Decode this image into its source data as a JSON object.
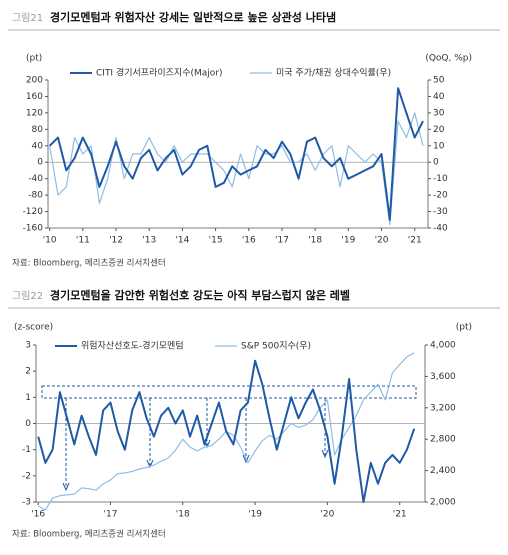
{
  "chart_data": [
    {
      "type": "line",
      "figure_label": "그림21",
      "title": "경기모멘텀과 위험자산 강세는 일반적으로 높은 상관성 나타냄",
      "y_label": "(pt)",
      "y2_label": "(QoQ, %p)",
      "x": [
        2010,
        2010.25,
        2010.5,
        2010.75,
        2011,
        2011.25,
        2011.5,
        2011.75,
        2012,
        2012.25,
        2012.5,
        2012.75,
        2013,
        2013.25,
        2013.5,
        2013.75,
        2014,
        2014.25,
        2014.5,
        2014.75,
        2015,
        2015.25,
        2015.5,
        2015.75,
        2016,
        2016.25,
        2016.5,
        2016.75,
        2017,
        2017.25,
        2017.5,
        2017.75,
        2018,
        2018.25,
        2018.5,
        2018.75,
        2019,
        2019.25,
        2019.5,
        2019.75,
        2020,
        2020.25,
        2020.5,
        2020.75,
        2021,
        2021.25
      ],
      "xlim": [
        2009.95,
        2021.4
      ],
      "xticks": [
        {
          "value": 2010,
          "label": "'10"
        },
        {
          "value": 2011,
          "label": "'11"
        },
        {
          "value": 2012,
          "label": "'12"
        },
        {
          "value": 2013,
          "label": "'13"
        },
        {
          "value": 2014,
          "label": "'14"
        },
        {
          "value": 2015,
          "label": "'15"
        },
        {
          "value": 2016,
          "label": "'16"
        },
        {
          "value": 2017,
          "label": "'17"
        },
        {
          "value": 2018,
          "label": "'18"
        },
        {
          "value": 2019,
          "label": "'19"
        },
        {
          "value": 2020,
          "label": "'20"
        },
        {
          "value": 2021,
          "label": "'21"
        }
      ],
      "ylim": [
        -160,
        200
      ],
      "yticks": [
        -160,
        -120,
        -80,
        -40,
        0,
        40,
        80,
        120,
        160,
        200
      ],
      "y2lim": [
        -40,
        50
      ],
      "y2ticks": [
        -40,
        -30,
        -20,
        -10,
        0,
        10,
        20,
        30,
        40,
        50
      ],
      "series": [
        {
          "name": "CITI 경기서프라이즈지수(Major)",
          "color": "#1f5aa6",
          "width": 2,
          "values": [
            40,
            60,
            -20,
            10,
            60,
            20,
            -60,
            -10,
            50,
            -10,
            -40,
            10,
            30,
            -20,
            10,
            30,
            -30,
            -10,
            30,
            40,
            -60,
            -50,
            -10,
            -30,
            -20,
            -10,
            30,
            10,
            50,
            20,
            -40,
            50,
            60,
            10,
            -10,
            10,
            -40,
            -30,
            -20,
            -10,
            20,
            -140,
            180,
            120,
            60,
            100
          ]
        },
        {
          "name": "미국 주가/채권 상대수익률(우)",
          "color": "#8fbde6",
          "width": 1.2,
          "axis": "y2",
          "values": [
            10,
            -20,
            -15,
            15,
            5,
            10,
            -25,
            -10,
            15,
            -10,
            5,
            5,
            15,
            5,
            0,
            10,
            0,
            5,
            5,
            5,
            0,
            -5,
            -15,
            5,
            -10,
            10,
            5,
            5,
            10,
            0,
            0,
            5,
            -5,
            5,
            10,
            -15,
            10,
            5,
            0,
            5,
            0,
            -38,
            25,
            15,
            30,
            10
          ]
        }
      ],
      "source": "자료: Bloomberg, 메리츠증권 리서치센터"
    },
    {
      "type": "line",
      "figure_label": "그림22",
      "title": "경기모멘텀을 감안한 위험선호 강도는 아직 부담스럽지 않은 레벨",
      "y_label": "(z-score)",
      "y2_label": "(pt)",
      "x": [
        2016,
        2016.1,
        2016.2,
        2016.3,
        2016.4,
        2016.5,
        2016.6,
        2016.7,
        2016.8,
        2016.9,
        2017,
        2017.1,
        2017.2,
        2017.3,
        2017.4,
        2017.5,
        2017.6,
        2017.7,
        2017.8,
        2017.9,
        2018,
        2018.1,
        2018.2,
        2018.3,
        2018.4,
        2018.5,
        2018.6,
        2018.7,
        2018.8,
        2018.9,
        2019,
        2019.1,
        2019.2,
        2019.3,
        2019.4,
        2019.5,
        2019.6,
        2019.7,
        2019.8,
        2019.9,
        2020,
        2020.1,
        2020.2,
        2020.3,
        2020.4,
        2020.5,
        2020.6,
        2020.7,
        2020.8,
        2020.9,
        2021,
        2021.1,
        2021.2
      ],
      "xlim": [
        2015.97,
        2021.35
      ],
      "xticks": [
        {
          "value": 2016,
          "label": "'16"
        },
        {
          "value": 2017,
          "label": "'17"
        },
        {
          "value": 2018,
          "label": "'18"
        },
        {
          "value": 2019,
          "label": "'19"
        },
        {
          "value": 2020,
          "label": "'20"
        },
        {
          "value": 2021,
          "label": "'21"
        }
      ],
      "ylim": [
        -3,
        3
      ],
      "yticks": [
        -3,
        -2,
        -1,
        0,
        1,
        2,
        3
      ],
      "y2lim": [
        2000,
        4000
      ],
      "y2ticks": [
        {
          "value": 2000,
          "label": "2,000"
        },
        {
          "value": 2400,
          "label": "2,400"
        },
        {
          "value": 2800,
          "label": "2,800"
        },
        {
          "value": 3200,
          "label": "3,200"
        },
        {
          "value": 3600,
          "label": "3,600"
        },
        {
          "value": 4000,
          "label": "4,000"
        }
      ],
      "series": [
        {
          "name": "위험자산선호도-경기모멘텀",
          "color": "#1f5aa6",
          "width": 2,
          "values": [
            -0.5,
            -1.5,
            -1.0,
            1.2,
            0.2,
            -0.8,
            0.3,
            -0.5,
            -1.2,
            0.5,
            0.8,
            -0.3,
            -1.0,
            0.5,
            1.2,
            0.2,
            -0.5,
            0.3,
            0.6,
            0.0,
            0.5,
            -0.5,
            0.3,
            -0.8,
            0.0,
            0.8,
            -0.3,
            -0.8,
            0.5,
            0.8,
            2.4,
            1.5,
            0.2,
            -1.0,
            0.0,
            1.0,
            0.2,
            0.8,
            1.3,
            0.5,
            -0.5,
            -2.3,
            -0.5,
            1.7,
            -1.0,
            -3.0,
            -1.5,
            -2.3,
            -1.5,
            -1.2,
            -1.5,
            -1.0,
            -0.2
          ]
        },
        {
          "name": "S&P 500지수(우)",
          "color": "#8fbde6",
          "width": 1.2,
          "axis": "y2",
          "values": [
            1950,
            1900,
            2050,
            2080,
            2090,
            2100,
            2180,
            2170,
            2150,
            2230,
            2280,
            2360,
            2370,
            2390,
            2420,
            2440,
            2470,
            2520,
            2560,
            2660,
            2800,
            2700,
            2650,
            2700,
            2720,
            2800,
            2900,
            2850,
            2700,
            2500,
            2650,
            2780,
            2850,
            2800,
            2900,
            3000,
            2950,
            2980,
            3050,
            3200,
            3300,
            2600,
            2800,
            2950,
            3100,
            3300,
            3400,
            3500,
            3300,
            3650,
            3750,
            3850,
            3900
          ]
        }
      ],
      "source": "자료: Bloomberg, 메리츠증권 리서치센터"
    }
  ]
}
